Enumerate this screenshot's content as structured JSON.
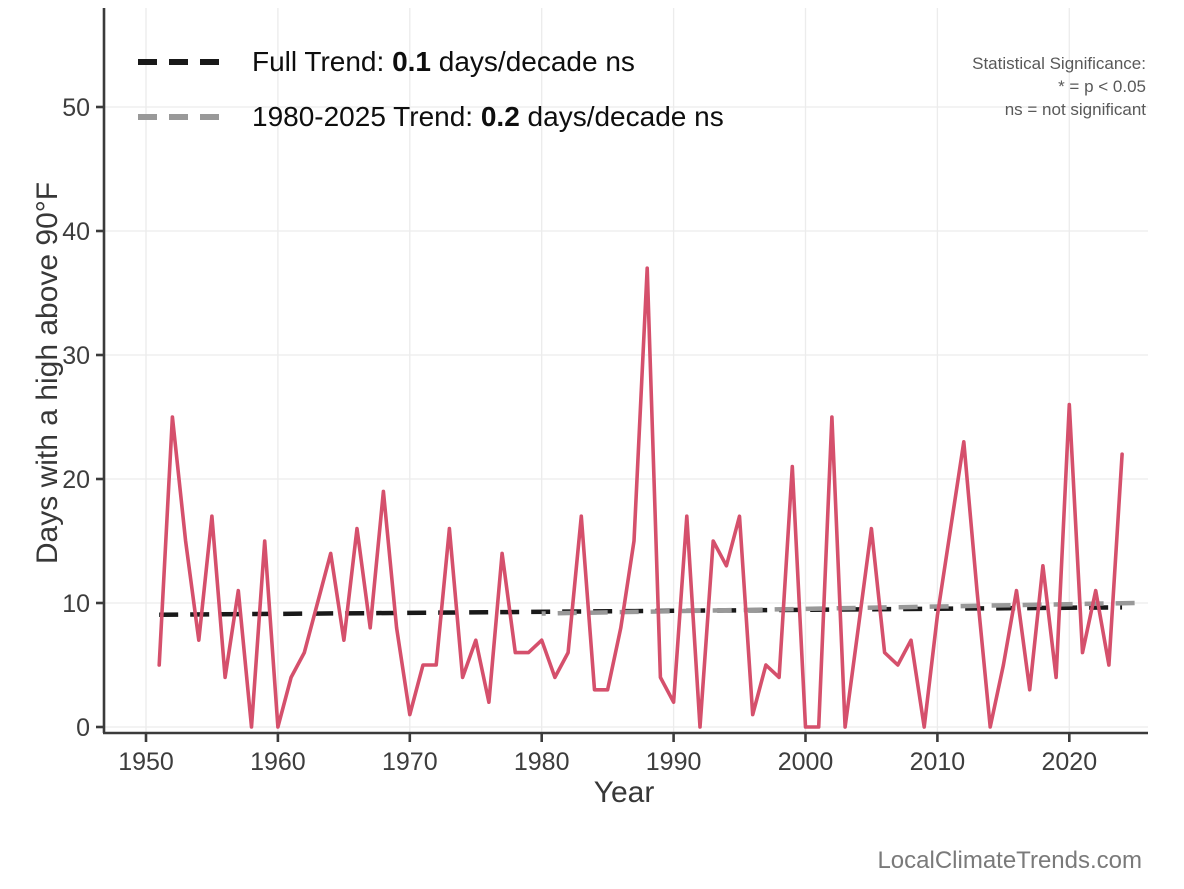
{
  "chart_data": {
    "type": "line",
    "title": "",
    "xlabel": "Year",
    "ylabel": "Days with a high above 90°F",
    "x": [
      1951,
      1952,
      1953,
      1954,
      1955,
      1956,
      1957,
      1958,
      1959,
      1960,
      1961,
      1962,
      1963,
      1964,
      1965,
      1966,
      1967,
      1968,
      1969,
      1970,
      1971,
      1972,
      1973,
      1974,
      1975,
      1976,
      1977,
      1978,
      1979,
      1980,
      1981,
      1982,
      1983,
      1984,
      1985,
      1986,
      1987,
      1988,
      1989,
      1990,
      1991,
      1992,
      1993,
      1994,
      1995,
      1996,
      1997,
      1998,
      1999,
      2000,
      2001,
      2002,
      2003,
      2004,
      2005,
      2006,
      2007,
      2008,
      2009,
      2010,
      2011,
      2012,
      2013,
      2014,
      2015,
      2016,
      2017,
      2018,
      2019,
      2020,
      2021,
      2022,
      2023,
      2024
    ],
    "values": [
      5,
      25,
      15,
      7,
      17,
      4,
      11,
      0,
      15,
      0,
      4,
      6,
      10,
      14,
      7,
      16,
      8,
      19,
      8,
      1,
      5,
      5,
      16,
      4,
      7,
      2,
      14,
      6,
      6,
      7,
      4,
      6,
      17,
      3,
      3,
      8,
      15,
      37,
      4,
      2,
      17,
      0,
      15,
      13,
      17,
      1,
      5,
      4,
      21,
      0,
      0,
      25,
      0,
      8,
      16,
      6,
      5,
      7,
      0,
      9,
      16,
      23,
      11,
      0,
      5,
      11,
      3,
      13,
      4,
      26,
      6,
      11,
      5,
      22
    ],
    "x_ticks": [
      1950,
      1960,
      1970,
      1980,
      1990,
      2000,
      2010,
      2020
    ],
    "y_ticks": [
      0,
      10,
      20,
      30,
      40,
      50
    ],
    "ylim": [
      0,
      50
    ],
    "grid": true,
    "legend_position": "top-left",
    "line_color": "#d5506c",
    "trend_lines": [
      {
        "name": "full-trend",
        "x1": 1951,
        "y1": 9.05,
        "x2": 2024,
        "y2": 9.65,
        "color": "#191919"
      },
      {
        "name": "trend-1980-2025",
        "x1": 1980,
        "y1": 9.15,
        "x2": 2025,
        "y2": 10.0,
        "color": "#999999"
      }
    ]
  },
  "legend": {
    "items": [
      {
        "prefix": "Full Trend: ",
        "value": "0.1",
        "suffix": " days/decade ns"
      },
      {
        "prefix": "1980-2025 Trend: ",
        "value": "0.2",
        "suffix": " days/decade ns"
      }
    ]
  },
  "significance_note": {
    "title": "Statistical Significance:",
    "line1": "* = p < 0.05",
    "line2": "ns = not significant"
  },
  "watermark": "LocalClimateTrends.com",
  "colors": {
    "line": "#d5506c",
    "trend_full": "#191919",
    "trend_recent": "#999999",
    "grid": "#ececec",
    "spine": "#3b3b3b",
    "tick_label": "#3d3d3d"
  }
}
